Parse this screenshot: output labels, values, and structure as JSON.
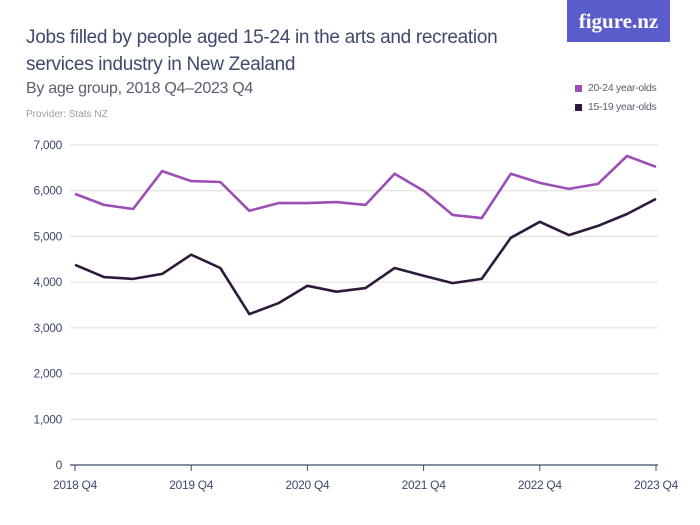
{
  "header": {
    "title": "Jobs filled by people aged 15-24 in the arts and recreation services industry in New Zealand",
    "subtitle": "By age group, 2018 Q4–2023 Q4",
    "provider": "Provider: Stats NZ",
    "logo": "figure.nz",
    "logo_color": "#5a5ccc"
  },
  "chart_data": {
    "type": "line",
    "title": "Jobs filled by people aged 15-24 in the arts and recreation services industry in New Zealand",
    "subtitle": "By age group, 2018 Q4–2023 Q4",
    "x": [
      "2018 Q4",
      "2019 Q1",
      "2019 Q2",
      "2019 Q3",
      "2019 Q4",
      "2020 Q1",
      "2020 Q2",
      "2020 Q3",
      "2020 Q4",
      "2021 Q1",
      "2021 Q2",
      "2021 Q3",
      "2021 Q4",
      "2022 Q1",
      "2022 Q2",
      "2022 Q3",
      "2022 Q4",
      "2023 Q1",
      "2023 Q2",
      "2023 Q3",
      "2023 Q4"
    ],
    "x_tick_labels": [
      "2018 Q4",
      "2019 Q4",
      "2020 Q4",
      "2021 Q4",
      "2022 Q4",
      "2023 Q4"
    ],
    "y_tick_labels": [
      "0",
      "1,000",
      "2,000",
      "3,000",
      "4,000",
      "5,000",
      "6,000",
      "7,000"
    ],
    "ylim": [
      0,
      7000
    ],
    "grid": true,
    "legend_position": "top-right",
    "series": [
      {
        "name": "20-24 year-olds",
        "color": "#9b4fb5",
        "values": [
          5930,
          5690,
          5600,
          6430,
          6210,
          6190,
          5560,
          5730,
          5730,
          5750,
          5690,
          6370,
          6000,
          5470,
          5400,
          6370,
          6170,
          6040,
          6150,
          6760,
          6520
        ]
      },
      {
        "name": "15-19 year-olds",
        "color": "#2e1a3a",
        "values": [
          4380,
          4110,
          4070,
          4180,
          4600,
          4310,
          3300,
          3540,
          3920,
          3790,
          3870,
          4310,
          4140,
          3980,
          4070,
          4970,
          5320,
          5030,
          5230,
          5490,
          5820
        ]
      }
    ]
  }
}
